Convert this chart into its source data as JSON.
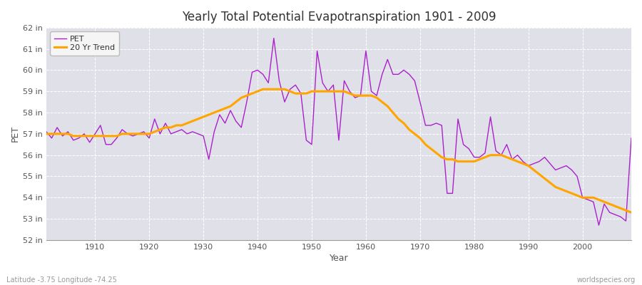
{
  "title": "Yearly Total Potential Evapotranspiration 1901 - 2009",
  "xlabel": "Year",
  "ylabel": "PET",
  "footer_left": "Latitude -3.75 Longitude -74.25",
  "footer_right": "worldspecies.org",
  "ylim": [
    52,
    62
  ],
  "ytick_labels": [
    "52 in",
    "53 in",
    "54 in",
    "55 in",
    "56 in",
    "57 in",
    "58 in",
    "59 in",
    "60 in",
    "61 in",
    "62 in"
  ],
  "ytick_values": [
    52,
    53,
    54,
    55,
    56,
    57,
    58,
    59,
    60,
    61,
    62
  ],
  "pet_color": "#AA22CC",
  "trend_color": "#FFA500",
  "fig_bg_color": "#FFFFFF",
  "plot_bg_color": "#E0E0E8",
  "grid_color": "#FFFFFF",
  "years": [
    1901,
    1902,
    1903,
    1904,
    1905,
    1906,
    1907,
    1908,
    1909,
    1910,
    1911,
    1912,
    1913,
    1914,
    1915,
    1916,
    1917,
    1918,
    1919,
    1920,
    1921,
    1922,
    1923,
    1924,
    1925,
    1926,
    1927,
    1928,
    1929,
    1930,
    1931,
    1932,
    1933,
    1934,
    1935,
    1936,
    1937,
    1938,
    1939,
    1940,
    1941,
    1942,
    1943,
    1944,
    1945,
    1946,
    1947,
    1948,
    1949,
    1950,
    1951,
    1952,
    1953,
    1954,
    1955,
    1956,
    1957,
    1958,
    1959,
    1960,
    1961,
    1962,
    1963,
    1964,
    1965,
    1966,
    1967,
    1968,
    1969,
    1970,
    1971,
    1972,
    1973,
    1974,
    1975,
    1976,
    1977,
    1978,
    1979,
    1980,
    1981,
    1982,
    1983,
    1984,
    1985,
    1986,
    1987,
    1988,
    1989,
    1990,
    1991,
    1992,
    1993,
    1994,
    1995,
    1996,
    1997,
    1998,
    1999,
    2000,
    2001,
    2002,
    2003,
    2004,
    2005,
    2006,
    2007,
    2008,
    2009
  ],
  "pet_values": [
    57.1,
    56.8,
    57.3,
    56.9,
    57.1,
    56.7,
    56.8,
    57.0,
    56.6,
    57.0,
    57.4,
    56.5,
    56.5,
    56.8,
    57.2,
    57.0,
    56.9,
    57.0,
    57.1,
    56.8,
    57.7,
    57.0,
    57.5,
    57.0,
    57.1,
    57.2,
    57.0,
    57.1,
    57.0,
    56.9,
    55.8,
    57.1,
    57.9,
    57.5,
    58.1,
    57.6,
    57.3,
    58.5,
    59.9,
    60.0,
    59.8,
    59.4,
    61.5,
    59.5,
    58.5,
    59.1,
    59.3,
    58.9,
    56.7,
    56.5,
    60.9,
    59.4,
    59.0,
    59.3,
    56.7,
    59.5,
    59.0,
    58.7,
    58.8,
    60.9,
    59.0,
    58.8,
    59.8,
    60.5,
    59.8,
    59.8,
    60.0,
    59.8,
    59.5,
    58.5,
    57.4,
    57.4,
    57.5,
    57.4,
    54.2,
    54.2,
    57.7,
    56.5,
    56.3,
    55.9,
    55.9,
    56.1,
    57.8,
    56.2,
    56.0,
    56.5,
    55.8,
    56.0,
    55.7,
    55.5,
    55.6,
    55.7,
    55.9,
    55.6,
    55.3,
    55.4,
    55.5,
    55.3,
    55.0,
    54.0,
    53.9,
    53.8,
    52.7,
    53.7,
    53.3,
    53.2,
    53.1,
    52.9,
    56.8
  ],
  "trend_values": [
    57.0,
    57.0,
    57.0,
    57.0,
    57.0,
    56.9,
    56.9,
    56.9,
    56.9,
    56.9,
    56.9,
    56.9,
    56.9,
    56.9,
    57.0,
    57.0,
    57.0,
    57.0,
    57.0,
    57.0,
    57.1,
    57.2,
    57.3,
    57.3,
    57.4,
    57.4,
    57.5,
    57.6,
    57.7,
    57.8,
    57.9,
    58.0,
    58.1,
    58.2,
    58.3,
    58.5,
    58.7,
    58.8,
    58.9,
    59.0,
    59.1,
    59.1,
    59.1,
    59.1,
    59.1,
    59.0,
    58.9,
    58.9,
    58.9,
    59.0,
    59.0,
    59.0,
    59.0,
    59.0,
    59.0,
    59.0,
    58.9,
    58.8,
    58.8,
    58.8,
    58.8,
    58.7,
    58.5,
    58.3,
    58.0,
    57.7,
    57.5,
    57.2,
    57.0,
    56.8,
    56.5,
    56.3,
    56.1,
    55.9,
    55.8,
    55.8,
    55.7,
    55.7,
    55.7,
    55.7,
    55.8,
    55.9,
    56.0,
    56.0,
    56.0,
    55.9,
    55.8,
    55.7,
    55.6,
    55.5,
    55.3,
    55.1,
    54.9,
    54.7,
    54.5,
    54.4,
    54.3,
    54.2,
    54.1,
    54.0,
    54.0,
    54.0,
    53.9,
    53.8,
    53.7,
    53.6,
    53.5,
    53.4,
    53.3
  ],
  "xticks": [
    1910,
    1920,
    1930,
    1940,
    1950,
    1960,
    1970,
    1980,
    1990,
    2000
  ],
  "xlim": [
    1901,
    2009
  ]
}
